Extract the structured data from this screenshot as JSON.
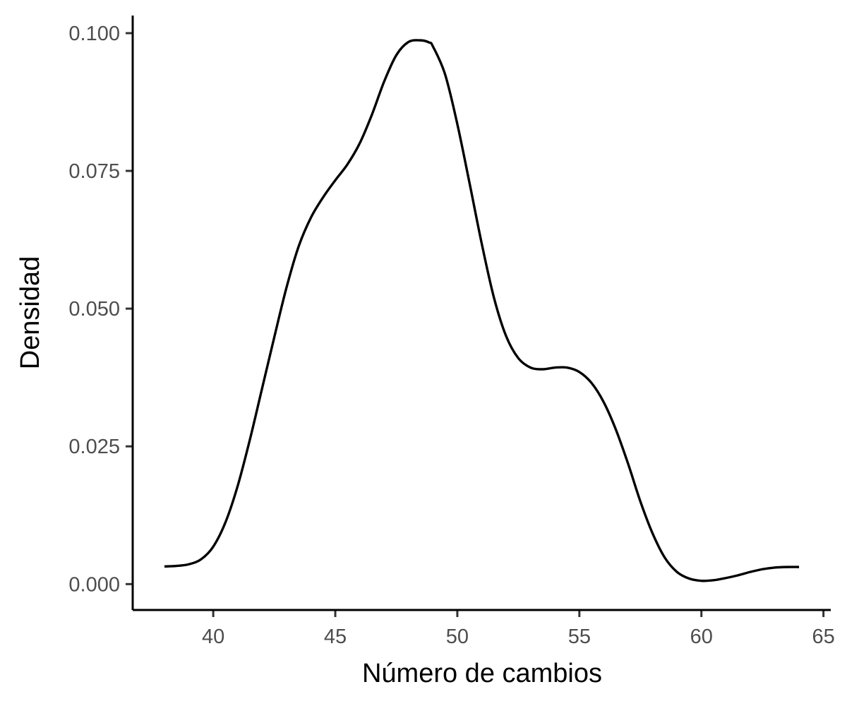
{
  "chart_data": {
    "type": "line",
    "title": "",
    "xlabel": "Número de cambios",
    "ylabel": "Densidad",
    "xlim": [
      36.7,
      65.3
    ],
    "ylim": [
      -0.0047,
      0.1032
    ],
    "xticks": [
      40,
      45,
      50,
      55,
      60,
      65
    ],
    "xtick_labels": [
      "40",
      "45",
      "50",
      "55",
      "60",
      "65"
    ],
    "yticks": [
      0.0,
      0.025,
      0.05,
      0.075,
      0.1
    ],
    "ytick_labels": [
      "0.000",
      "0.025",
      "0.050",
      "0.075",
      "0.100"
    ],
    "grid": false,
    "legend": "none",
    "line_color": "#000000",
    "series": [
      {
        "x": [
          38.0,
          38.5,
          39.0,
          39.5,
          40.0,
          40.5,
          41.0,
          41.5,
          42.0,
          42.5,
          43.0,
          43.5,
          44.0,
          44.5,
          45.0,
          45.5,
          46.0,
          46.5,
          47.0,
          47.5,
          48.0,
          48.5,
          48.85,
          49.0,
          49.5,
          50.0,
          50.5,
          51.0,
          51.5,
          52.0,
          52.5,
          53.0,
          53.5,
          54.0,
          54.5,
          55.0,
          55.5,
          56.0,
          56.5,
          57.0,
          57.5,
          58.0,
          58.5,
          59.0,
          59.5,
          60.0,
          60.5,
          61.0,
          61.5,
          62.0,
          62.5,
          63.0,
          63.5,
          64.0
        ],
        "y": [
          0.0032,
          0.0033,
          0.0036,
          0.0045,
          0.0068,
          0.0112,
          0.0178,
          0.0262,
          0.0355,
          0.0448,
          0.0538,
          0.0613,
          0.0665,
          0.0702,
          0.0733,
          0.0762,
          0.08,
          0.0852,
          0.0912,
          0.096,
          0.0984,
          0.0987,
          0.0983,
          0.0976,
          0.0925,
          0.0835,
          0.0728,
          0.0618,
          0.052,
          0.045,
          0.041,
          0.0393,
          0.039,
          0.0393,
          0.0393,
          0.0385,
          0.0365,
          0.033,
          0.028,
          0.0218,
          0.015,
          0.0092,
          0.0048,
          0.0022,
          0.001,
          0.0006,
          0.0007,
          0.0011,
          0.0016,
          0.0022,
          0.0027,
          0.003,
          0.0031,
          0.0031
        ]
      }
    ]
  }
}
